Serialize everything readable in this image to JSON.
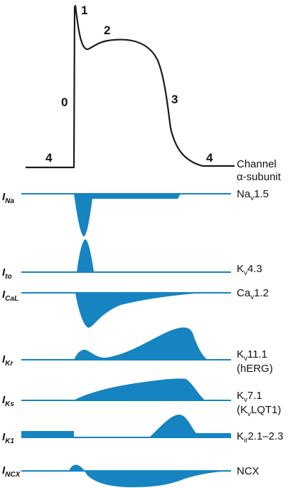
{
  "action_potential": {
    "phases": [
      "0",
      "1",
      "2",
      "3",
      "4",
      "4"
    ],
    "header_line1": "Channel",
    "header_line2": "α-subunit"
  },
  "currents": [
    {
      "symbol": "I",
      "subscript": "Na",
      "channel": [
        "Na",
        "v",
        "1.5"
      ]
    },
    {
      "symbol": "I",
      "subscript": "to",
      "channel": [
        "K",
        "v",
        "4.3"
      ]
    },
    {
      "symbol": "I",
      "subscript": "CaL",
      "channel": [
        "Ca",
        "v",
        "1.2"
      ]
    },
    {
      "symbol": "I",
      "subscript": "Kr",
      "channel": [
        "K",
        "v",
        "11.1"
      ],
      "channel_line2": "(hERG)"
    },
    {
      "symbol": "I",
      "subscript": "Ks",
      "channel": [
        "K",
        "v",
        "7.1"
      ],
      "channel_line2": [
        "(K",
        "v",
        "LQT1)"
      ]
    },
    {
      "symbol": "I",
      "subscript": "K1",
      "channel": [
        "K",
        "ir",
        "2.1–2.3"
      ]
    },
    {
      "symbol": "I",
      "subscript": "NCX",
      "channel": [
        "NCX"
      ]
    }
  ],
  "colors": {
    "trace": "#1a1a1a",
    "current": "#1584c1"
  }
}
